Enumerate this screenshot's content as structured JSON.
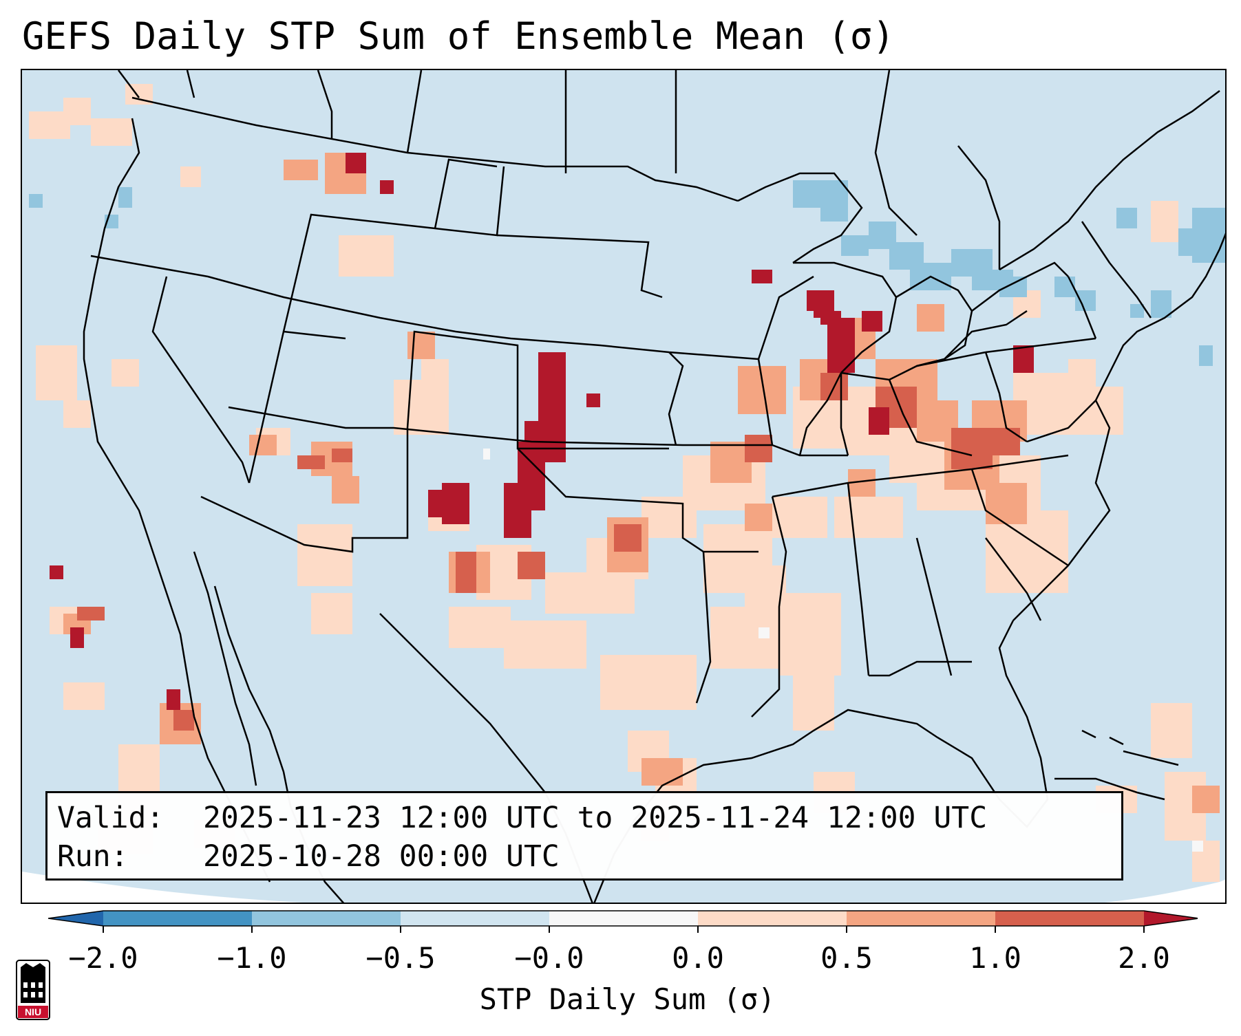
{
  "title": "GEFS Daily STP Sum of Ensemble Mean (σ)",
  "info_box": {
    "valid_label": "Valid:",
    "valid_value": "2025-11-23 12:00 UTC to 2025-11-24 12:00 UTC",
    "run_label": "Run:",
    "run_value": "2025-10-28 00:00 UTC"
  },
  "colorbar": {
    "label": "STP Daily Sum (σ)",
    "ticks": [
      "−2.0",
      "−1.0",
      "−0.5",
      "−0.0",
      "0.0",
      "0.5",
      "1.0",
      "2.0"
    ],
    "colors": [
      "#4393c3",
      "#92c5de",
      "#d1e5f0",
      "#f7f7f7",
      "#fddbc7",
      "#f4a582",
      "#d6604d"
    ],
    "extend_low": "#2166ac",
    "extend_high": "#b2182b"
  },
  "map": {
    "domain": "CONUS",
    "background_color": "#d1e5f0"
  },
  "logo": {
    "text": "NIU",
    "name": "Northern Illinois University"
  }
}
